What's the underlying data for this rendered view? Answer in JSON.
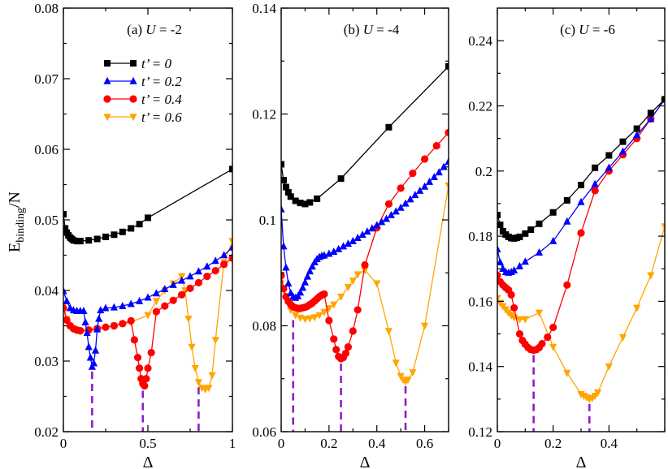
{
  "chart_data": [
    {
      "type": "line",
      "panel_label": "(a)",
      "panel_param": "U",
      "panel_value": "= -2",
      "xlabel": "Δ",
      "ylabel": "E",
      "ylabel_sub": "binding",
      "ylabel_tail": "/N",
      "xlim": [
        0,
        1
      ],
      "ylim": [
        0.02,
        0.08
      ],
      "xticks": [
        0,
        0.5,
        1
      ],
      "xticklabels": [
        "0",
        "0.5",
        "1"
      ],
      "yticks": [
        0.02,
        0.03,
        0.04,
        0.05,
        0.06,
        0.07,
        0.08
      ],
      "yticklabels": [
        "0.02",
        "0.03",
        "0.04",
        "0.05",
        "0.06",
        "0.07",
        "0.08"
      ],
      "legend": {
        "location": "upper-left",
        "entries": [
          "t’ = 0",
          "t’ = 0.2",
          "t’ = 0.4",
          "t’ = 0.6"
        ]
      },
      "dashed_markers": [
        0.17,
        0.47,
        0.8
      ],
      "series": [
        {
          "name": "t’ = 0",
          "color": "#000000",
          "marker": "square",
          "x": [
            0,
            0.01,
            0.02,
            0.03,
            0.04,
            0.05,
            0.06,
            0.08,
            0.1,
            0.15,
            0.2,
            0.25,
            0.3,
            0.35,
            0.4,
            0.45,
            0.5,
            1.0
          ],
          "y": [
            0.0508,
            0.0488,
            0.0482,
            0.0478,
            0.0475,
            0.0473,
            0.0471,
            0.047,
            0.047,
            0.0471,
            0.0473,
            0.0476,
            0.0479,
            0.0483,
            0.0488,
            0.0494,
            0.0503,
            0.0572
          ]
        },
        {
          "name": "t’ = 0.2",
          "color": "#0000ff",
          "marker": "triangle-up",
          "x": [
            0,
            0.02,
            0.04,
            0.06,
            0.08,
            0.1,
            0.12,
            0.13,
            0.14,
            0.15,
            0.16,
            0.17,
            0.18,
            0.19,
            0.2,
            0.21,
            0.22,
            0.25,
            0.3,
            0.35,
            0.4,
            0.45,
            0.5,
            0.55,
            0.6,
            0.65,
            0.7,
            0.75,
            0.8,
            0.85,
            0.9,
            0.95,
            1.0
          ],
          "y": [
            0.0399,
            0.0385,
            0.0375,
            0.0372,
            0.0371,
            0.0371,
            0.0371,
            0.0355,
            0.034,
            0.032,
            0.0305,
            0.0292,
            0.0297,
            0.0315,
            0.0345,
            0.036,
            0.0372,
            0.0375,
            0.0376,
            0.0378,
            0.0381,
            0.0385,
            0.039,
            0.0396,
            0.0402,
            0.0408,
            0.0414,
            0.042,
            0.0427,
            0.0434,
            0.0442,
            0.045,
            0.0461
          ]
        },
        {
          "name": "t’ = 0.4",
          "color": "#ff0000",
          "marker": "circle",
          "x": [
            0,
            0.02,
            0.04,
            0.06,
            0.08,
            0.1,
            0.15,
            0.2,
            0.25,
            0.3,
            0.35,
            0.4,
            0.42,
            0.44,
            0.45,
            0.46,
            0.47,
            0.48,
            0.49,
            0.5,
            0.52,
            0.55,
            0.6,
            0.65,
            0.7,
            0.75,
            0.8,
            0.85,
            0.9,
            0.95,
            1.0
          ],
          "y": [
            0.0375,
            0.0358,
            0.035,
            0.0346,
            0.0344,
            0.0343,
            0.0344,
            0.0346,
            0.0348,
            0.035,
            0.0353,
            0.0357,
            0.033,
            0.0305,
            0.029,
            0.0275,
            0.0268,
            0.0265,
            0.0275,
            0.029,
            0.0312,
            0.037,
            0.0378,
            0.0386,
            0.0394,
            0.0403,
            0.0411,
            0.042,
            0.0428,
            0.0437,
            0.0446
          ]
        },
        {
          "name": "t’ = 0.6",
          "color": "#ffa500",
          "marker": "triangle-down",
          "x": [
            0,
            0.02,
            0.04,
            0.06,
            0.08,
            0.1,
            0.15,
            0.2,
            0.3,
            0.4,
            0.5,
            0.55,
            0.6,
            0.65,
            0.7,
            0.72,
            0.74,
            0.76,
            0.78,
            0.8,
            0.82,
            0.84,
            0.86,
            0.88,
            0.9,
            0.95,
            1.0
          ],
          "y": [
            0.0378,
            0.036,
            0.035,
            0.0345,
            0.0343,
            0.0342,
            0.0343,
            0.0345,
            0.035,
            0.0355,
            0.0365,
            0.0385,
            0.04,
            0.041,
            0.042,
            0.04,
            0.036,
            0.032,
            0.029,
            0.027,
            0.0262,
            0.026,
            0.0262,
            0.028,
            0.033,
            0.044,
            0.047
          ]
        }
      ]
    },
    {
      "type": "line",
      "panel_label": "(b)",
      "panel_param": "U",
      "panel_value": "= -4",
      "xlabel": "Δ",
      "xlim": [
        0,
        0.7
      ],
      "ylim": [
        0.06,
        0.14
      ],
      "xticks": [
        0,
        0.2,
        0.4,
        0.6
      ],
      "xticklabels": [
        "0",
        "0.2",
        "0.4",
        "0.6"
      ],
      "yticks": [
        0.06,
        0.08,
        0.1,
        0.12,
        0.14
      ],
      "yticklabels": [
        "0.06",
        "0.08",
        "0.1",
        "0.12",
        "0.14"
      ],
      "dashed_markers": [
        0.05,
        0.25,
        0.52
      ],
      "series": [
        {
          "name": "t’ = 0",
          "color": "#000000",
          "marker": "square",
          "x": [
            0,
            0.01,
            0.02,
            0.03,
            0.04,
            0.06,
            0.08,
            0.1,
            0.12,
            0.15,
            0.25,
            0.45,
            0.7
          ],
          "y": [
            0.1105,
            0.1075,
            0.1062,
            0.1052,
            0.1044,
            0.1036,
            0.1032,
            0.103,
            0.1033,
            0.104,
            0.1078,
            0.1175,
            0.129
          ]
        },
        {
          "name": "t’ = 0.2",
          "color": "#0000ff",
          "marker": "triangle-up",
          "x": [
            0,
            0.01,
            0.02,
            0.03,
            0.04,
            0.05,
            0.06,
            0.07,
            0.08,
            0.09,
            0.1,
            0.11,
            0.12,
            0.13,
            0.14,
            0.15,
            0.16,
            0.17,
            0.18,
            0.2,
            0.22,
            0.24,
            0.26,
            0.28,
            0.3,
            0.32,
            0.34,
            0.36,
            0.38,
            0.4,
            0.42,
            0.44,
            0.46,
            0.48,
            0.5,
            0.52,
            0.54,
            0.56,
            0.58,
            0.6,
            0.62,
            0.64,
            0.66,
            0.68,
            0.7
          ],
          "y": [
            0.102,
            0.095,
            0.091,
            0.088,
            0.0862,
            0.0855,
            0.0853,
            0.0856,
            0.0863,
            0.0872,
            0.0882,
            0.0893,
            0.0903,
            0.0912,
            0.092,
            0.0926,
            0.093,
            0.0932,
            0.0933,
            0.0936,
            0.094,
            0.0945,
            0.095,
            0.0955,
            0.096,
            0.0966,
            0.0972,
            0.0978,
            0.0984,
            0.099,
            0.0996,
            0.1002,
            0.1009,
            0.1016,
            0.1023,
            0.1031,
            0.1039,
            0.1047,
            0.1055,
            0.1063,
            0.1072,
            0.1081,
            0.109,
            0.11,
            0.111
          ]
        },
        {
          "name": "t’ = 0.4",
          "color": "#ff0000",
          "marker": "circle",
          "x": [
            0,
            0.01,
            0.02,
            0.03,
            0.04,
            0.05,
            0.06,
            0.07,
            0.08,
            0.09,
            0.1,
            0.11,
            0.12,
            0.13,
            0.14,
            0.15,
            0.16,
            0.17,
            0.18,
            0.2,
            0.22,
            0.23,
            0.24,
            0.25,
            0.26,
            0.27,
            0.28,
            0.3,
            0.32,
            0.35,
            0.4,
            0.45,
            0.5,
            0.55,
            0.6,
            0.65,
            0.7
          ],
          "y": [
            0.0895,
            0.087,
            0.0855,
            0.0846,
            0.084,
            0.0836,
            0.0834,
            0.0833,
            0.0833,
            0.0834,
            0.0835,
            0.0837,
            0.084,
            0.0843,
            0.0847,
            0.0851,
            0.0855,
            0.0858,
            0.086,
            0.081,
            0.0775,
            0.0755,
            0.0742,
            0.0738,
            0.074,
            0.0748,
            0.076,
            0.079,
            0.083,
            0.0915,
            0.0985,
            0.103,
            0.106,
            0.1088,
            0.1115,
            0.114,
            0.1165
          ]
        },
        {
          "name": "t’ = 0.6",
          "color": "#ffa500",
          "marker": "triangle-down",
          "x": [
            0,
            0.02,
            0.04,
            0.06,
            0.08,
            0.1,
            0.12,
            0.14,
            0.16,
            0.18,
            0.2,
            0.22,
            0.25,
            0.28,
            0.3,
            0.32,
            0.35,
            0.4,
            0.45,
            0.48,
            0.5,
            0.51,
            0.52,
            0.53,
            0.55,
            0.6,
            0.7
          ],
          "y": [
            0.088,
            0.085,
            0.083,
            0.082,
            0.0815,
            0.0813,
            0.0814,
            0.0816,
            0.082,
            0.0826,
            0.0833,
            0.084,
            0.0855,
            0.0873,
            0.0885,
            0.0897,
            0.0905,
            0.088,
            0.079,
            0.073,
            0.0705,
            0.0698,
            0.0695,
            0.0698,
            0.0712,
            0.08,
            0.1065
          ]
        }
      ]
    },
    {
      "type": "line",
      "panel_label": "(c)",
      "panel_param": "U",
      "panel_value": "= -6",
      "xlabel": "Δ",
      "xlim": [
        0,
        0.6
      ],
      "ylim": [
        0.12,
        0.25
      ],
      "xticks": [
        0,
        0.2,
        0.4
      ],
      "xticklabels": [
        "0",
        "0.2",
        "0.4"
      ],
      "yticks": [
        0.12,
        0.14,
        0.16,
        0.18,
        0.2,
        0.22,
        0.24
      ],
      "yticklabels": [
        "0.12",
        "0.14",
        "0.16",
        "0.18",
        "0.2",
        "0.22",
        "0.24"
      ],
      "dashed_markers": [
        0.13,
        0.33
      ],
      "series": [
        {
          "name": "t’ = 0",
          "color": "#000000",
          "marker": "square",
          "x": [
            0,
            0.01,
            0.02,
            0.03,
            0.04,
            0.05,
            0.06,
            0.07,
            0.08,
            0.1,
            0.12,
            0.15,
            0.2,
            0.25,
            0.3,
            0.35,
            0.4,
            0.45,
            0.5,
            0.55,
            0.6
          ],
          "y": [
            0.1865,
            0.1835,
            0.1815,
            0.1805,
            0.1798,
            0.1794,
            0.1793,
            0.1795,
            0.1798,
            0.1808,
            0.182,
            0.1838,
            0.1873,
            0.191,
            0.1957,
            0.201,
            0.2048,
            0.209,
            0.213,
            0.2178,
            0.222
          ]
        },
        {
          "name": "t’ = 0.2",
          "color": "#0000ff",
          "marker": "triangle-up",
          "x": [
            0,
            0.01,
            0.02,
            0.03,
            0.04,
            0.05,
            0.06,
            0.08,
            0.1,
            0.15,
            0.2,
            0.25,
            0.3,
            0.35,
            0.4,
            0.45,
            0.5,
            0.55,
            0.6
          ],
          "y": [
            0.176,
            0.172,
            0.17,
            0.169,
            0.1688,
            0.169,
            0.1695,
            0.1708,
            0.1722,
            0.175,
            0.1785,
            0.1845,
            0.1905,
            0.196,
            0.201,
            0.206,
            0.211,
            0.216,
            0.222
          ]
        },
        {
          "name": "t’ = 0.4",
          "color": "#ff0000",
          "marker": "circle",
          "x": [
            0,
            0.01,
            0.02,
            0.03,
            0.04,
            0.05,
            0.06,
            0.08,
            0.09,
            0.1,
            0.11,
            0.12,
            0.13,
            0.14,
            0.15,
            0.16,
            0.18,
            0.2,
            0.25,
            0.3,
            0.35,
            0.4,
            0.45,
            0.5,
            0.55,
            0.6
          ],
          "y": [
            0.168,
            0.166,
            0.165,
            0.1642,
            0.1635,
            0.162,
            0.158,
            0.15,
            0.148,
            0.1468,
            0.1458,
            0.1452,
            0.145,
            0.1452,
            0.1458,
            0.147,
            0.149,
            0.152,
            0.165,
            0.181,
            0.194,
            0.2,
            0.205,
            0.21,
            0.216,
            0.222
          ]
        },
        {
          "name": "t’ = 0.6",
          "color": "#ffa500",
          "marker": "triangle-down",
          "x": [
            0,
            0.01,
            0.02,
            0.03,
            0.04,
            0.05,
            0.06,
            0.08,
            0.1,
            0.15,
            0.2,
            0.25,
            0.3,
            0.31,
            0.32,
            0.33,
            0.34,
            0.35,
            0.36,
            0.4,
            0.45,
            0.5,
            0.55,
            0.6
          ],
          "y": [
            0.161,
            0.1595,
            0.1585,
            0.1575,
            0.1565,
            0.1557,
            0.155,
            0.1545,
            0.1545,
            0.1565,
            0.146,
            0.138,
            0.1315,
            0.131,
            0.1305,
            0.13,
            0.1303,
            0.131,
            0.132,
            0.14,
            0.149,
            0.158,
            0.168,
            0.183
          ]
        }
      ]
    }
  ]
}
